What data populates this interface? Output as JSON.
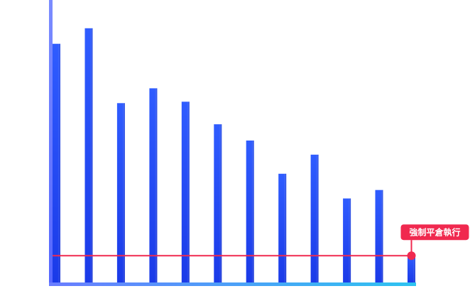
{
  "chart_data": {
    "type": "bar",
    "categories": [
      "",
      "",
      "",
      "",
      "",
      "",
      "",
      "",
      "",
      "",
      "",
      ""
    ],
    "values": [
      338,
      360,
      254,
      275,
      256,
      224,
      201,
      154,
      181,
      119,
      131,
      38
    ],
    "ylim": [
      0,
      400
    ],
    "grid": false,
    "threshold": {
      "value": 38,
      "label": "強制平倉執行"
    },
    "colors": {
      "bar_top": "#2f5cff",
      "bar_bottom": "#1a3ae8",
      "threshold_line": "#f0294f",
      "badge_bg": "#f0294f",
      "badge_text": "#ffffff",
      "axis_start": "#6a7dff",
      "axis_end": "#2ec3f0"
    }
  }
}
